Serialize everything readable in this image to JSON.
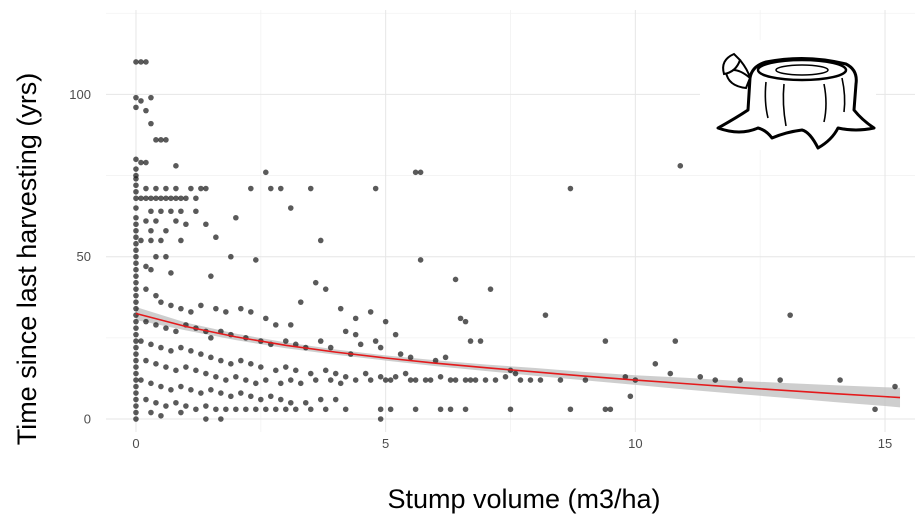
{
  "chart_data": {
    "type": "scatter",
    "title": "",
    "xlabel": "Stump volume (m3/ha)",
    "ylabel": "Time since last harvesting (yrs)",
    "xlim": [
      -0.6,
      15.6
    ],
    "ylim": [
      -4,
      126
    ],
    "x_ticks": [
      0,
      5,
      10,
      15
    ],
    "y_ticks": [
      0,
      50,
      100
    ],
    "x_tick_labels": [
      "0",
      "5",
      "10",
      "15"
    ],
    "y_tick_labels": [
      "0",
      "50",
      "100"
    ],
    "grid": true,
    "legend": "none",
    "point_color": "#1a1a1a",
    "trend_color": "#e41a1c",
    "band_color": "#bdbdbd",
    "icon": "tree-stump-icon",
    "trend": {
      "x": [
        0,
        1,
        2,
        3,
        4,
        5,
        6,
        7,
        8,
        9,
        10,
        11,
        12,
        13,
        14,
        15,
        15.3
      ],
      "y": [
        32.5,
        28.5,
        25.3,
        22.7,
        20.6,
        18.8,
        17.2,
        15.8,
        14.5,
        13.2,
        12.0,
        10.9,
        9.8,
        8.8,
        7.8,
        6.9,
        6.6
      ],
      "lower": [
        30.5,
        27.3,
        24.3,
        21.8,
        19.8,
        18.0,
        16.3,
        14.8,
        13.3,
        11.9,
        10.5,
        9.1,
        7.8,
        6.5,
        5.2,
        4.0,
        3.6
      ],
      "upper": [
        34.5,
        29.7,
        26.3,
        23.6,
        21.4,
        19.6,
        18.1,
        16.8,
        15.7,
        14.5,
        13.5,
        12.7,
        11.8,
        11.1,
        10.4,
        9.8,
        9.6
      ]
    },
    "points": [
      [
        0,
        110
      ],
      [
        0.1,
        110
      ],
      [
        0.2,
        110
      ],
      [
        0,
        99
      ],
      [
        0.1,
        98
      ],
      [
        0.3,
        99
      ],
      [
        0,
        96
      ],
      [
        0.2,
        95
      ],
      [
        0.3,
        91
      ],
      [
        0.4,
        86
      ],
      [
        0.6,
        86
      ],
      [
        0.5,
        86
      ],
      [
        0.8,
        78
      ],
      [
        0.1,
        79
      ],
      [
        0.2,
        79
      ],
      [
        0,
        80
      ],
      [
        0,
        77
      ],
      [
        0,
        75
      ],
      [
        0,
        74
      ],
      [
        0,
        72
      ],
      [
        0,
        70
      ],
      [
        0,
        68
      ],
      [
        0.2,
        71
      ],
      [
        0.4,
        71
      ],
      [
        0.6,
        71
      ],
      [
        0.8,
        71
      ],
      [
        1.1,
        71
      ],
      [
        1.3,
        71
      ],
      [
        1.4,
        71
      ],
      [
        1.2,
        68
      ],
      [
        1.0,
        68
      ],
      [
        0.8,
        68
      ],
      [
        0.6,
        68
      ],
      [
        0.4,
        68
      ],
      [
        0.3,
        68
      ],
      [
        0.2,
        68
      ],
      [
        0.1,
        68
      ],
      [
        0.9,
        68
      ],
      [
        0.7,
        68
      ],
      [
        0.5,
        68
      ],
      [
        2.3,
        71
      ],
      [
        2.6,
        76
      ],
      [
        2.7,
        71
      ],
      [
        2.9,
        71
      ],
      [
        3.5,
        71
      ],
      [
        4.8,
        71
      ],
      [
        5.6,
        76
      ],
      [
        5.7,
        76
      ],
      [
        8.7,
        71
      ],
      [
        10.9,
        78
      ],
      [
        0.3,
        64
      ],
      [
        0.5,
        64
      ],
      [
        0.7,
        64
      ],
      [
        0.9,
        64
      ],
      [
        1.2,
        64
      ],
      [
        0.2,
        61
      ],
      [
        0.4,
        61
      ],
      [
        0.8,
        61
      ],
      [
        1.0,
        60
      ],
      [
        1.4,
        60
      ],
      [
        0.3,
        58
      ],
      [
        0.6,
        58
      ],
      [
        0.5,
        55
      ],
      [
        0.3,
        55
      ],
      [
        0.1,
        55
      ],
      [
        0.9,
        55
      ],
      [
        1.6,
        56
      ],
      [
        3.1,
        65
      ],
      [
        3.7,
        55
      ],
      [
        2.4,
        49
      ],
      [
        2.0,
        62
      ],
      [
        1.9,
        50
      ],
      [
        1.5,
        44
      ],
      [
        0.4,
        50
      ],
      [
        0.6,
        50
      ],
      [
        0.2,
        47
      ],
      [
        0.3,
        46
      ],
      [
        0.7,
        45
      ],
      [
        0,
        65
      ],
      [
        0,
        62
      ],
      [
        0,
        60
      ],
      [
        0,
        58
      ],
      [
        0,
        56
      ],
      [
        0,
        54
      ],
      [
        0,
        52
      ],
      [
        0,
        50
      ],
      [
        0,
        48
      ],
      [
        0,
        46
      ],
      [
        0,
        44
      ],
      [
        0,
        42
      ],
      [
        0,
        40
      ],
      [
        0,
        38
      ],
      [
        0,
        36
      ],
      [
        0,
        34
      ],
      [
        0,
        32
      ],
      [
        0,
        30
      ],
      [
        0,
        28
      ],
      [
        0,
        26
      ],
      [
        0,
        24
      ],
      [
        0,
        22
      ],
      [
        0,
        20
      ],
      [
        0,
        18
      ],
      [
        0,
        16
      ],
      [
        0,
        14
      ],
      [
        0,
        12
      ],
      [
        0,
        10
      ],
      [
        0,
        8
      ],
      [
        0,
        6
      ],
      [
        0,
        4
      ],
      [
        0,
        2
      ],
      [
        0,
        0
      ],
      [
        0.2,
        40
      ],
      [
        0.4,
        38
      ],
      [
        0.5,
        36
      ],
      [
        0.7,
        35
      ],
      [
        0.9,
        34
      ],
      [
        1.1,
        33
      ],
      [
        1.3,
        35
      ],
      [
        1.6,
        34
      ],
      [
        1.8,
        33
      ],
      [
        2.1,
        34
      ],
      [
        2.3,
        33
      ],
      [
        2.6,
        31
      ],
      [
        2.8,
        29
      ],
      [
        3.1,
        29
      ],
      [
        3.3,
        36
      ],
      [
        3.6,
        42
      ],
      [
        3.8,
        40
      ],
      [
        4.1,
        34
      ],
      [
        4.4,
        31
      ],
      [
        4.7,
        33
      ],
      [
        4.2,
        27
      ],
      [
        4.4,
        26
      ],
      [
        5.0,
        30
      ],
      [
        5.2,
        26
      ],
      [
        5.7,
        49
      ],
      [
        6.4,
        43
      ],
      [
        6.5,
        31
      ],
      [
        6.6,
        30
      ],
      [
        7.1,
        40
      ],
      [
        8.2,
        32
      ],
      [
        13.1,
        32
      ],
      [
        0.2,
        30
      ],
      [
        0.4,
        29
      ],
      [
        0.6,
        28
      ],
      [
        0.8,
        27
      ],
      [
        1.0,
        29
      ],
      [
        1.2,
        28
      ],
      [
        1.4,
        27
      ],
      [
        1.5,
        25
      ],
      [
        1.7,
        27
      ],
      [
        1.9,
        26
      ],
      [
        2.2,
        25
      ],
      [
        2.5,
        24
      ],
      [
        2.7,
        23
      ],
      [
        3.0,
        24
      ],
      [
        3.2,
        23
      ],
      [
        3.4,
        22
      ],
      [
        3.7,
        24
      ],
      [
        3.9,
        22
      ],
      [
        4.3,
        20
      ],
      [
        4.5,
        23
      ],
      [
        4.8,
        24
      ],
      [
        4.9,
        22
      ],
      [
        5.3,
        20
      ],
      [
        5.5,
        19
      ],
      [
        6.0,
        18
      ],
      [
        6.2,
        19
      ],
      [
        6.7,
        24
      ],
      [
        6.9,
        24
      ],
      [
        7.5,
        15
      ],
      [
        7.6,
        14
      ],
      [
        8.5,
        12
      ],
      [
        9.0,
        12
      ],
      [
        9.4,
        24
      ],
      [
        9.8,
        13
      ],
      [
        10.0,
        12
      ],
      [
        10.4,
        17
      ],
      [
        10.7,
        14
      ],
      [
        10.8,
        24
      ],
      [
        11.3,
        13
      ],
      [
        11.6,
        12
      ],
      [
        12.1,
        12
      ],
      [
        12.9,
        12
      ],
      [
        14.1,
        12
      ],
      [
        14.8,
        3
      ],
      [
        15.2,
        10
      ],
      [
        0.1,
        24
      ],
      [
        0.3,
        23
      ],
      [
        0.5,
        22
      ],
      [
        0.7,
        21
      ],
      [
        0.9,
        22
      ],
      [
        1.1,
        21
      ],
      [
        1.3,
        20
      ],
      [
        1.5,
        19
      ],
      [
        1.7,
        18
      ],
      [
        1.9,
        17
      ],
      [
        2.1,
        18
      ],
      [
        2.3,
        17
      ],
      [
        2.5,
        16
      ],
      [
        2.8,
        15
      ],
      [
        3.0,
        16
      ],
      [
        3.2,
        15
      ],
      [
        3.5,
        14
      ],
      [
        3.8,
        15
      ],
      [
        4.0,
        14
      ],
      [
        4.2,
        13
      ],
      [
        4.6,
        14
      ],
      [
        4.9,
        13
      ],
      [
        5.1,
        12
      ],
      [
        5.4,
        14
      ],
      [
        5.6,
        12
      ],
      [
        5.9,
        12
      ],
      [
        6.1,
        13
      ],
      [
        6.3,
        12
      ],
      [
        6.6,
        12
      ],
      [
        6.8,
        12
      ],
      [
        7.0,
        12
      ],
      [
        7.4,
        13
      ],
      [
        7.9,
        12
      ],
      [
        8.1,
        12
      ],
      [
        0.2,
        18
      ],
      [
        0.4,
        17
      ],
      [
        0.6,
        16
      ],
      [
        0.8,
        15
      ],
      [
        1.0,
        16
      ],
      [
        1.2,
        15
      ],
      [
        1.4,
        14
      ],
      [
        1.6,
        13
      ],
      [
        1.8,
        12
      ],
      [
        2.0,
        13
      ],
      [
        2.2,
        12
      ],
      [
        2.4,
        11
      ],
      [
        2.6,
        12
      ],
      [
        2.9,
        11
      ],
      [
        3.1,
        12
      ],
      [
        3.3,
        11
      ],
      [
        3.6,
        12
      ],
      [
        3.9,
        12
      ],
      [
        4.1,
        11
      ],
      [
        4.4,
        12
      ],
      [
        4.7,
        12
      ],
      [
        5.0,
        12
      ],
      [
        5.2,
        13
      ],
      [
        5.5,
        12
      ],
      [
        5.8,
        12
      ],
      [
        6.4,
        12
      ],
      [
        6.7,
        12
      ],
      [
        7.2,
        12
      ],
      [
        7.7,
        12
      ],
      [
        0.1,
        12
      ],
      [
        0.3,
        11
      ],
      [
        0.5,
        10
      ],
      [
        0.7,
        9
      ],
      [
        0.9,
        10
      ],
      [
        1.1,
        9
      ],
      [
        1.3,
        8
      ],
      [
        1.5,
        9
      ],
      [
        1.7,
        8
      ],
      [
        1.9,
        7
      ],
      [
        2.1,
        8
      ],
      [
        2.3,
        7
      ],
      [
        2.5,
        6
      ],
      [
        2.7,
        7
      ],
      [
        2.9,
        6
      ],
      [
        3.1,
        5
      ],
      [
        3.4,
        5
      ],
      [
        3.7,
        6
      ],
      [
        4.0,
        6
      ],
      [
        0.2,
        6
      ],
      [
        0.4,
        5
      ],
      [
        0.6,
        4
      ],
      [
        0.8,
        5
      ],
      [
        1.0,
        4
      ],
      [
        1.2,
        3
      ],
      [
        1.4,
        4
      ],
      [
        1.6,
        3
      ],
      [
        1.8,
        3
      ],
      [
        2.0,
        3
      ],
      [
        2.2,
        3
      ],
      [
        2.4,
        3
      ],
      [
        2.6,
        3
      ],
      [
        2.8,
        3
      ],
      [
        3.0,
        3
      ],
      [
        3.2,
        3
      ],
      [
        3.5,
        3
      ],
      [
        3.8,
        3
      ],
      [
        4.2,
        3
      ],
      [
        4.9,
        3
      ],
      [
        5.1,
        3
      ],
      [
        5.6,
        3
      ],
      [
        6.1,
        3
      ],
      [
        6.3,
        3
      ],
      [
        6.6,
        3
      ],
      [
        7.5,
        3
      ],
      [
        8.7,
        3
      ],
      [
        9.4,
        3
      ],
      [
        9.5,
        3
      ],
      [
        9.9,
        7
      ],
      [
        0.3,
        2
      ],
      [
        0.5,
        1
      ],
      [
        0.9,
        2
      ],
      [
        1.4,
        0
      ],
      [
        1.7,
        0
      ],
      [
        4.9,
        0
      ]
    ]
  }
}
